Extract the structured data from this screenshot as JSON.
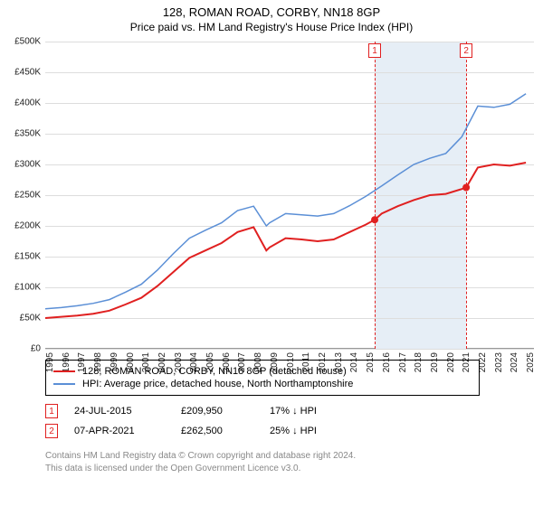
{
  "header": {
    "title": "128, ROMAN ROAD, CORBY, NN18 8GP",
    "subtitle": "Price paid vs. HM Land Registry's House Price Index (HPI)"
  },
  "chart": {
    "type": "line",
    "x_years": [
      1995,
      1996,
      1997,
      1998,
      1999,
      2000,
      2001,
      2002,
      2003,
      2004,
      2005,
      2006,
      2007,
      2008,
      2009,
      2010,
      2011,
      2012,
      2013,
      2014,
      2015,
      2016,
      2017,
      2018,
      2019,
      2020,
      2021,
      2022,
      2023,
      2024,
      2025
    ],
    "xlim": [
      1995,
      2025.5
    ],
    "y_ticks": [
      0,
      50000,
      100000,
      150000,
      200000,
      250000,
      300000,
      350000,
      400000,
      450000,
      500000
    ],
    "y_tick_labels": [
      "£0",
      "£50K",
      "£100K",
      "£150K",
      "£200K",
      "£250K",
      "£300K",
      "£350K",
      "£400K",
      "£450K",
      "£500K"
    ],
    "ylim": [
      0,
      500000
    ],
    "background_color": "#ffffff",
    "grid_color": "#dddddd",
    "shaded_region": {
      "x_start": 2015.56,
      "x_end": 2021.27,
      "color": "#e6eef6"
    },
    "series": [
      {
        "id": "property",
        "label": "128, ROMAN ROAD, CORBY, NN18 8GP (detached house)",
        "color": "#e02020",
        "line_width": 2,
        "years": [
          1995,
          1996,
          1997,
          1998,
          1999,
          2000,
          2001,
          2002,
          2003,
          2004,
          2005,
          2006,
          2007,
          2008,
          2008.8,
          2009,
          2010,
          2011,
          2012,
          2013,
          2014,
          2015,
          2015.56,
          2016,
          2017,
          2018,
          2019,
          2020,
          2021,
          2021.27,
          2022,
          2023,
          2024,
          2025
        ],
        "values": [
          50000,
          52000,
          54000,
          57000,
          62000,
          72000,
          83000,
          102000,
          125000,
          148000,
          160000,
          172000,
          190000,
          198000,
          160000,
          165000,
          180000,
          178000,
          175000,
          178000,
          190000,
          202000,
          209950,
          220000,
          232000,
          242000,
          250000,
          252000,
          260000,
          262500,
          295000,
          300000,
          298000,
          303000
        ]
      },
      {
        "id": "hpi",
        "label": "HPI: Average price, detached house, North Northamptonshire",
        "color": "#5b8fd6",
        "line_width": 1.5,
        "years": [
          1995,
          1996,
          1997,
          1998,
          1999,
          2000,
          2001,
          2002,
          2003,
          2004,
          2005,
          2006,
          2007,
          2008,
          2008.8,
          2009,
          2010,
          2011,
          2012,
          2013,
          2014,
          2015,
          2016,
          2017,
          2018,
          2019,
          2020,
          2021,
          2022,
          2023,
          2024,
          2025
        ],
        "values": [
          65000,
          67000,
          70000,
          74000,
          80000,
          92000,
          105000,
          128000,
          155000,
          180000,
          193000,
          205000,
          225000,
          232000,
          200000,
          205000,
          220000,
          218000,
          216000,
          220000,
          233000,
          248000,
          265000,
          283000,
          300000,
          310000,
          318000,
          345000,
          395000,
          393000,
          398000,
          415000
        ]
      }
    ],
    "markers": [
      {
        "n": "1",
        "x": 2015.56,
        "y": 209950
      },
      {
        "n": "2",
        "x": 2021.27,
        "y": 262500
      }
    ],
    "label_fontsize": 10,
    "title_fontsize": 13
  },
  "legend": {
    "items": [
      {
        "color": "#e02020",
        "label": "128, ROMAN ROAD, CORBY, NN18 8GP (detached house)"
      },
      {
        "color": "#5b8fd6",
        "label": "HPI: Average price, detached house, North Northamptonshire"
      }
    ]
  },
  "transactions": [
    {
      "n": "1",
      "date": "24-JUL-2015",
      "price": "£209,950",
      "diff": "17% ↓ HPI"
    },
    {
      "n": "2",
      "date": "07-APR-2021",
      "price": "£262,500",
      "diff": "25% ↓ HPI"
    }
  ],
  "attribution": {
    "line1": "Contains HM Land Registry data © Crown copyright and database right 2024.",
    "line2": "This data is licensed under the Open Government Licence v3.0."
  }
}
